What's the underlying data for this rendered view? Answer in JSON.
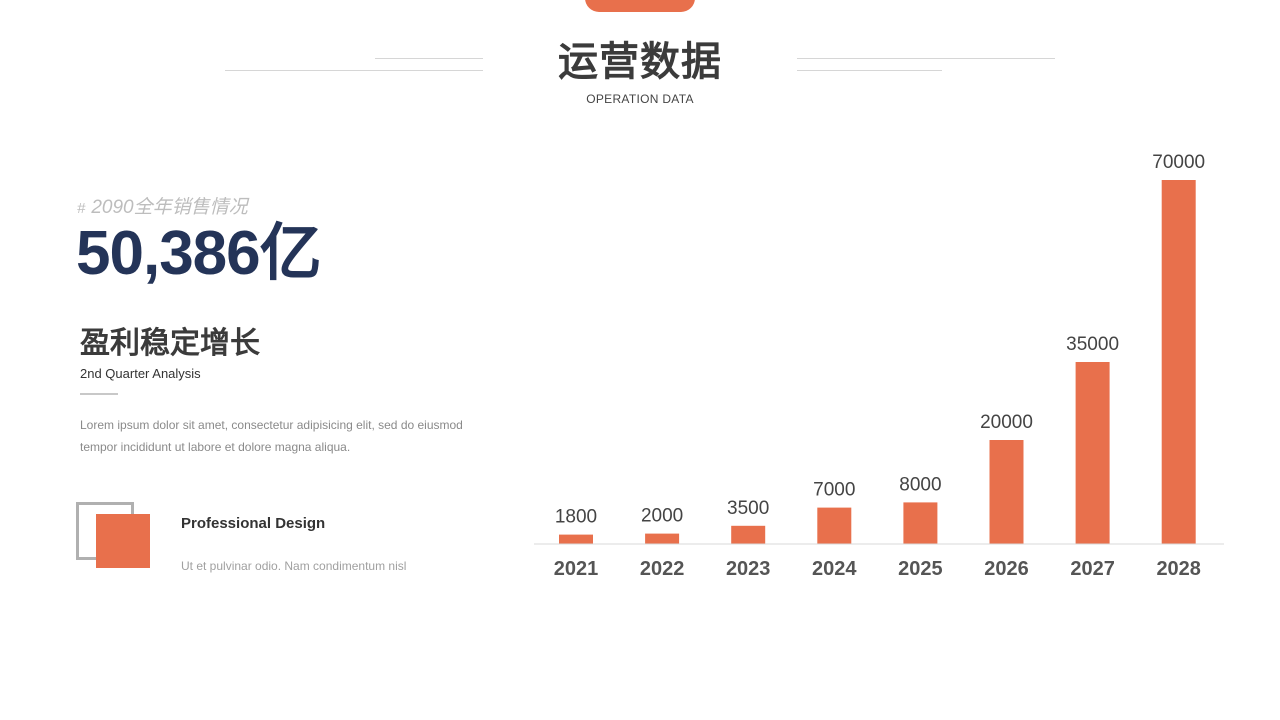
{
  "header": {
    "title": "运营数据",
    "subtitle": "OPERATION DATA"
  },
  "summary": {
    "hash": "#",
    "tag": "2090全年销售情况",
    "big_number": "50,386亿",
    "heading": "盈利稳定增长",
    "subheading": "2nd Quarter Analysis",
    "body": "Lorem ipsum dolor sit amet, consectetur adipisicing elit, sed do eiusmod tempor incididunt ut labore et dolore magna aliqua."
  },
  "feature": {
    "title": "Professional Design",
    "desc": "Ut et pulvinar odio. Nam condimentum nisl"
  },
  "colors": {
    "accent": "#E8704C",
    "navy": "#243458",
    "text": "#333333",
    "muted": "#8a8a8a",
    "axis": "#d9d9d9"
  },
  "chart_data": {
    "type": "bar",
    "categories": [
      "2021",
      "2022",
      "2023",
      "2024",
      "2025",
      "2026",
      "2027",
      "2028"
    ],
    "values": [
      1800,
      2000,
      3500,
      7000,
      8000,
      20000,
      35000,
      70000
    ],
    "title": "",
    "xlabel": "",
    "ylabel": "",
    "ylim": [
      0,
      70000
    ],
    "grid": false,
    "legend": "none",
    "data_labels": true
  }
}
